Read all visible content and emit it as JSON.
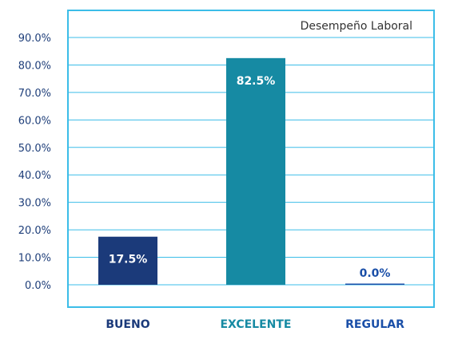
{
  "chart_data": {
    "type": "bar",
    "title": "Desempeño Laboral",
    "categories": [
      "BUENO",
      "EXCELENTE",
      "REGULAR"
    ],
    "values": [
      17.5,
      82.5,
      0.0
    ],
    "value_labels": [
      "17.5%",
      "82.5%",
      "0.0%"
    ],
    "yticks": [
      0,
      10,
      20,
      30,
      40,
      50,
      60,
      70,
      80,
      90
    ],
    "ytick_labels": [
      "0.0%",
      "10.0%",
      "20.0%",
      "30.0%",
      "40.0%",
      "50.0%",
      "60.0%",
      "70.0%",
      "80.0%",
      "90.0%"
    ],
    "ylim": [
      0,
      90
    ],
    "xlabel": "",
    "ylabel": "",
    "grid": true,
    "legend_position": "top-right",
    "colors": {
      "bars": [
        "#1b3a7a",
        "#168aa3",
        "#1a4fa8"
      ],
      "labels": [
        "#1b3a7a",
        "#168aa3",
        "#1a4fa8"
      ],
      "frame": "#3bbde8",
      "grid": "#3bbde8"
    }
  }
}
